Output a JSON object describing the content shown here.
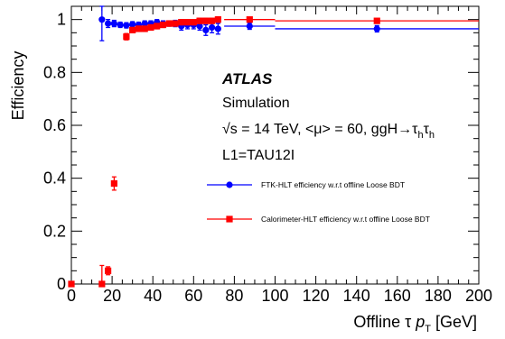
{
  "chart_data": {
    "type": "scatter",
    "xlabel": "Offline τ p_T [GeV]",
    "ylabel": "Efficiency",
    "xlim": [
      0,
      200
    ],
    "ylim": [
      0,
      1.05
    ],
    "x_ticks": [
      0,
      20,
      40,
      60,
      80,
      100,
      120,
      140,
      160,
      180,
      200
    ],
    "y_ticks": [
      0,
      0.2,
      0.4,
      0.6,
      0.8,
      1
    ],
    "x_tick_labels": [
      "0",
      "20",
      "40",
      "60",
      "80",
      "100",
      "120",
      "140",
      "160",
      "180",
      "200"
    ],
    "y_tick_labels": [
      "0",
      "0.2",
      "0.4",
      "0.6",
      "0.8",
      "1"
    ],
    "grid": false,
    "legend_position": "right",
    "annotations": {
      "experiment": "ATLAS",
      "status": "Simulation",
      "conditions_prefix": "√s = 14 TeV, <μ> = 60, ggH→τ",
      "conditions_sub1": "h",
      "conditions_tau": "τ",
      "conditions_sub2": "h",
      "trigger": "L1=TAU12I"
    },
    "series": [
      {
        "name": "FTK-HLT efficiency w.r.t offline Loose BDT",
        "color": "#0000ff",
        "marker": "circle",
        "points": [
          {
            "x": 15,
            "y": 1.0,
            "xerr": [
              1,
              1
            ],
            "yerr": 0.08
          },
          {
            "x": 18,
            "y": 0.985,
            "xerr": [
              1.5,
              1.5
            ],
            "yerr": 0.015
          },
          {
            "x": 21,
            "y": 0.985,
            "xerr": [
              1.5,
              1.5
            ],
            "yerr": 0.012
          },
          {
            "x": 24,
            "y": 0.98,
            "xerr": [
              1.5,
              1.5
            ],
            "yerr": 0.01
          },
          {
            "x": 27,
            "y": 0.978,
            "xerr": [
              1.5,
              1.5
            ],
            "yerr": 0.01
          },
          {
            "x": 30,
            "y": 0.982,
            "xerr": [
              1.5,
              1.5
            ],
            "yerr": 0.01
          },
          {
            "x": 33,
            "y": 0.98,
            "xerr": [
              1.5,
              1.5
            ],
            "yerr": 0.01
          },
          {
            "x": 36,
            "y": 0.985,
            "xerr": [
              1.5,
              1.5
            ],
            "yerr": 0.01
          },
          {
            "x": 39,
            "y": 0.985,
            "xerr": [
              1.5,
              1.5
            ],
            "yerr": 0.01
          },
          {
            "x": 42,
            "y": 0.99,
            "xerr": [
              1.5,
              1.5
            ],
            "yerr": 0.01
          },
          {
            "x": 45,
            "y": 0.985,
            "xerr": [
              1.5,
              1.5
            ],
            "yerr": 0.01
          },
          {
            "x": 48,
            "y": 0.985,
            "xerr": [
              1.5,
              1.5
            ],
            "yerr": 0.01
          },
          {
            "x": 51,
            "y": 0.985,
            "xerr": [
              1.5,
              1.5
            ],
            "yerr": 0.012
          },
          {
            "x": 54,
            "y": 0.975,
            "xerr": [
              1.5,
              1.5
            ],
            "yerr": 0.015
          },
          {
            "x": 57,
            "y": 0.98,
            "xerr": [
              1.5,
              1.5
            ],
            "yerr": 0.015
          },
          {
            "x": 60,
            "y": 0.98,
            "xerr": [
              1.5,
              1.5
            ],
            "yerr": 0.015
          },
          {
            "x": 63,
            "y": 0.975,
            "xerr": [
              1.5,
              1.5
            ],
            "yerr": 0.015
          },
          {
            "x": 66,
            "y": 0.96,
            "xerr": [
              1.5,
              1.5
            ],
            "yerr": 0.02
          },
          {
            "x": 69,
            "y": 0.97,
            "xerr": [
              1.5,
              1.5
            ],
            "yerr": 0.02
          },
          {
            "x": 72,
            "y": 0.965,
            "xerr": [
              1.5,
              1.5
            ],
            "yerr": 0.02
          },
          {
            "x": 87.5,
            "y": 0.975,
            "xerr": [
              12.5,
              12.5
            ],
            "yerr": 0.012
          },
          {
            "x": 150,
            "y": 0.965,
            "xerr": [
              50,
              50
            ],
            "yerr": 0.012
          }
        ]
      },
      {
        "name": "Calorimeter-HLT efficiency w.r.t offline Loose BDT",
        "color": "#ff0000",
        "marker": "square",
        "points": [
          {
            "x": 0,
            "y": 0.0,
            "xerr": [
              0,
              1
            ],
            "yerr": 0
          },
          {
            "x": 15,
            "y": 0.0,
            "xerr": [
              1,
              1
            ],
            "yerr": 0.07
          },
          {
            "x": 18,
            "y": 0.05,
            "xerr": [
              1.5,
              1.5
            ],
            "yerr": 0.015
          },
          {
            "x": 21,
            "y": 0.38,
            "xerr": [
              1.5,
              1.5
            ],
            "yerr": 0.025
          },
          {
            "x": 27,
            "y": 0.935,
            "xerr": [
              1.5,
              1.5
            ],
            "yerr": 0.012
          },
          {
            "x": 30,
            "y": 0.96,
            "xerr": [
              1.5,
              1.5
            ],
            "yerr": 0.01
          },
          {
            "x": 33,
            "y": 0.965,
            "xerr": [
              1.5,
              1.5
            ],
            "yerr": 0.01
          },
          {
            "x": 36,
            "y": 0.965,
            "xerr": [
              1.5,
              1.5
            ],
            "yerr": 0.01
          },
          {
            "x": 39,
            "y": 0.97,
            "xerr": [
              1.5,
              1.5
            ],
            "yerr": 0.01
          },
          {
            "x": 42,
            "y": 0.975,
            "xerr": [
              1.5,
              1.5
            ],
            "yerr": 0.01
          },
          {
            "x": 45,
            "y": 0.98,
            "xerr": [
              1.5,
              1.5
            ],
            "yerr": 0.01
          },
          {
            "x": 48,
            "y": 0.985,
            "xerr": [
              1.5,
              1.5
            ],
            "yerr": 0.01
          },
          {
            "x": 51,
            "y": 0.985,
            "xerr": [
              1.5,
              1.5
            ],
            "yerr": 0.01
          },
          {
            "x": 54,
            "y": 0.99,
            "xerr": [
              1.5,
              1.5
            ],
            "yerr": 0.01
          },
          {
            "x": 57,
            "y": 0.99,
            "xerr": [
              1.5,
              1.5
            ],
            "yerr": 0.01
          },
          {
            "x": 60,
            "y": 0.99,
            "xerr": [
              1.5,
              1.5
            ],
            "yerr": 0.01
          },
          {
            "x": 63,
            "y": 0.995,
            "xerr": [
              1.5,
              1.5
            ],
            "yerr": 0.01
          },
          {
            "x": 66,
            "y": 0.995,
            "xerr": [
              1.5,
              1.5
            ],
            "yerr": 0.01
          },
          {
            "x": 69,
            "y": 0.995,
            "xerr": [
              1.5,
              1.5
            ],
            "yerr": 0.01
          },
          {
            "x": 72,
            "y": 1.0,
            "xerr": [
              1.5,
              1.5
            ],
            "yerr": 0.01
          },
          {
            "x": 87.5,
            "y": 1.0,
            "xerr": [
              12.5,
              12.5
            ],
            "yerr": 0.008
          },
          {
            "x": 150,
            "y": 0.995,
            "xerr": [
              50,
              50
            ],
            "yerr": 0.008
          }
        ]
      }
    ]
  }
}
